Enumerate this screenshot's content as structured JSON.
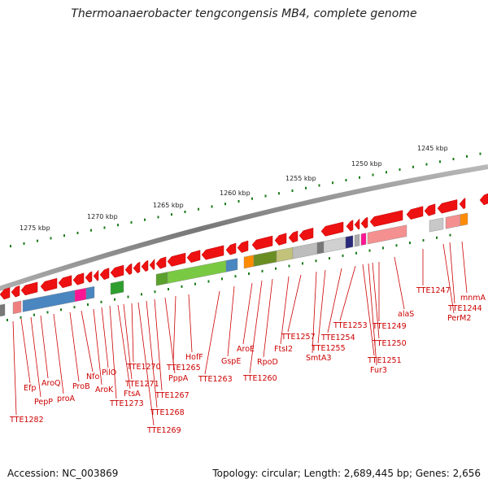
{
  "title": "Thermoanaerobacter tengcongensis MB4, complete genome",
  "footer": {
    "accession": "Accession: NC_003869",
    "summary": "Topology: circular; Length: 2,689,445 bp; Genes: 2,656"
  },
  "scale_labels": [
    "1245 kbp",
    "1250 kbp",
    "1255 kbp",
    "1260 kbp",
    "1265 kbp",
    "1270 kbp",
    "1275 kbp"
  ],
  "gene_labels": [
    "mnmA",
    "TTE1244",
    "PerM2",
    "TTE1247",
    "alaS",
    "TTE1249",
    "TTE1250",
    "Fur3",
    "TTE1251",
    "TTE1253",
    "TTE1254",
    "TTE1255",
    "SmtA3",
    "TTE1257",
    "FtsI2",
    "RpoD",
    "TTE1260",
    "AroE",
    "GspE",
    "TTE1263",
    "HofF",
    "TTE1265",
    "PppA",
    "TTE1267",
    "TTE1268",
    "TTE1269",
    "TTE1270",
    "TTE1271",
    "FtsA",
    "TTE1273",
    "PilO",
    "AroK",
    "Nfo",
    "ProB",
    "proA",
    "AroQ",
    "PepP",
    "Efp",
    "TTE1282"
  ],
  "colors": {
    "strand_gene": "#ee1111",
    "label": "#cc0000",
    "tick": "#1a7a1a",
    "backbone": "#8a8a8a"
  }
}
